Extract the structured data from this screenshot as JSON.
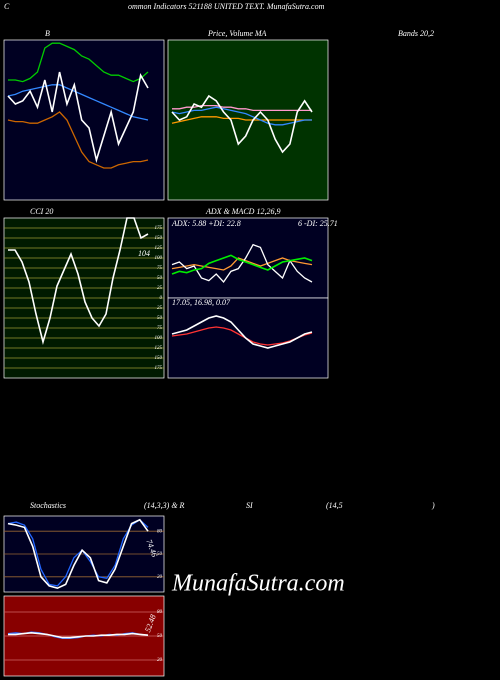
{
  "header": {
    "left": "C",
    "right": "ommon  Indicators 521188  UNITED TEXT. MunafaSutra.com"
  },
  "top_labels": [
    "B",
    "Price,  Volume  MA",
    "Bands 20,2",
    "CCI 20",
    "ADX  & MACD 12,26,9",
    "Stochastics",
    "(14,3,3) & R",
    "SI",
    "(14,5",
    ")"
  ],
  "watermark": "MunafaSutra.com",
  "panels": [
    {
      "name": "bollinger",
      "ylim": [
        0,
        100
      ],
      "series": [
        {
          "color": "#00cc00",
          "values": [
            75,
            75,
            74,
            76,
            80,
            95,
            98,
            98,
            96,
            94,
            90,
            88,
            84,
            80,
            78,
            78,
            76,
            74,
            76,
            80
          ]
        },
        {
          "color": "#cc6600",
          "values": [
            50,
            49,
            49,
            48,
            48,
            50,
            52,
            55,
            50,
            40,
            30,
            24,
            22,
            20,
            20,
            22,
            23,
            24,
            24,
            25
          ]
        },
        {
          "color": "#3388ff",
          "values": [
            65,
            66,
            68,
            69,
            70,
            71,
            72,
            72,
            70,
            68,
            66,
            64,
            62,
            60,
            58,
            56,
            54,
            52,
            51,
            50
          ]
        },
        {
          "color": "#ffffff",
          "values": [
            65,
            60,
            62,
            68,
            58,
            75,
            55,
            80,
            60,
            72,
            50,
            45,
            25,
            40,
            55,
            35,
            45,
            55,
            78,
            70
          ]
        }
      ]
    },
    {
      "name": "price-ma",
      "ylim": [
        0,
        100
      ],
      "series": [
        {
          "color": "#ff99cc",
          "values": [
            57,
            57,
            58,
            58,
            59,
            59,
            59,
            58,
            58,
            57,
            57,
            56,
            56,
            56,
            56,
            56,
            56,
            56,
            56,
            56
          ]
        },
        {
          "color": "#ff9900",
          "values": [
            48,
            49,
            50,
            51,
            52,
            52,
            52,
            51,
            51,
            51,
            50,
            50,
            50,
            50,
            50,
            50,
            50,
            50,
            50,
            50
          ]
        },
        {
          "color": "#3388ff",
          "values": [
            55,
            54,
            55,
            56,
            56,
            57,
            58,
            57,
            56,
            55,
            54,
            52,
            50,
            48,
            47,
            47,
            48,
            49,
            50,
            50
          ]
        },
        {
          "color": "#ffffff",
          "values": [
            55,
            50,
            52,
            60,
            58,
            65,
            62,
            55,
            50,
            35,
            40,
            50,
            55,
            50,
            38,
            30,
            35,
            55,
            62,
            55
          ]
        }
      ]
    },
    {
      "name": "cci",
      "ylim": [
        -200,
        200
      ],
      "yticks": [
        175,
        150,
        125,
        100,
        75,
        50,
        25,
        0,
        {
          "value": -25,
          "label": "25"
        },
        {
          "value": -50,
          "label": "50"
        },
        {
          "value": -75,
          "label": "75"
        },
        {
          "value": -100,
          "label": "100"
        },
        {
          "value": -125,
          "label": "125"
        },
        {
          "value": -150,
          "label": "150"
        },
        {
          "value": -175,
          "label": "175"
        }
      ],
      "labels": [
        "104"
      ],
      "series": [
        {
          "color": "#ffffff",
          "values": [
            120,
            120,
            90,
            40,
            -40,
            -110,
            -50,
            30,
            70,
            110,
            60,
            -10,
            -50,
            -70,
            -40,
            50,
            120,
            200,
            200,
            150,
            160
          ]
        }
      ]
    },
    {
      "name": "adx",
      "ylim": [
        0,
        60
      ],
      "labels": [
        "ADX: 5.88  +DI: 22.8",
        "6  -DI: 25.71"
      ],
      "series": [
        {
          "color": "#ff9933",
          "values": [
            22,
            23,
            24,
            25,
            24,
            23,
            22,
            21,
            24,
            30,
            28,
            26,
            24,
            26,
            28,
            30,
            28,
            27,
            26,
            25
          ]
        },
        {
          "color": "#ffffff",
          "values": [
            25,
            27,
            22,
            24,
            15,
            13,
            18,
            12,
            20,
            22,
            30,
            40,
            38,
            25,
            20,
            15,
            28,
            20,
            15,
            12
          ]
        },
        {
          "color": "#00ee00",
          "values": [
            18,
            20,
            19,
            21,
            22,
            26,
            28,
            30,
            32,
            29,
            27,
            25,
            23,
            21,
            24,
            27,
            28,
            29,
            30,
            28
          ]
        }
      ]
    },
    {
      "name": "macd",
      "ylim": [
        -2,
        2
      ],
      "labels": [
        "17.05,  16.98,  0.07"
      ],
      "series": [
        {
          "color": "#ff3333",
          "values": [
            0.1,
            0.15,
            0.2,
            0.3,
            0.4,
            0.5,
            0.55,
            0.5,
            0.4,
            0.2,
            0,
            -0.2,
            -0.3,
            -0.35,
            -0.3,
            -0.25,
            -0.15,
            0,
            0.15,
            0.25
          ]
        },
        {
          "color": "#ffffff",
          "values": [
            0.2,
            0.3,
            0.4,
            0.6,
            0.8,
            1,
            1.1,
            1,
            0.8,
            0.4,
            0,
            -0.3,
            -0.4,
            -0.5,
            -0.4,
            -0.3,
            -0.2,
            0,
            0.2,
            0.3
          ]
        }
      ]
    },
    {
      "name": "stochastics",
      "ylim": [
        0,
        100
      ],
      "yticks": [
        80,
        50,
        20
      ],
      "labels": [
        "74.46"
      ],
      "series": [
        {
          "color": "#2266ff",
          "values": [
            90,
            92,
            88,
            70,
            30,
            10,
            8,
            20,
            45,
            55,
            40,
            20,
            18,
            35,
            70,
            88,
            95,
            85
          ]
        },
        {
          "color": "#ffffff",
          "values": [
            90,
            88,
            85,
            60,
            20,
            8,
            5,
            10,
            35,
            55,
            45,
            15,
            12,
            30,
            60,
            90,
            95,
            80
          ]
        }
      ]
    },
    {
      "name": "rsi",
      "ylim": [
        0,
        100
      ],
      "yticks": [
        80,
        50,
        20
      ],
      "labels": [
        "52.48"
      ],
      "series": [
        {
          "color": "#2266ff",
          "values": [
            53,
            54,
            53,
            55,
            54,
            52,
            49,
            47,
            47,
            48,
            50,
            51,
            50,
            52,
            51,
            53,
            54,
            52,
            51
          ]
        },
        {
          "color": "#ffffff",
          "values": [
            52,
            52,
            53,
            54,
            53,
            52,
            50,
            48,
            48,
            49,
            50,
            50,
            51,
            51,
            52,
            52,
            53,
            52,
            51
          ]
        }
      ]
    }
  ]
}
